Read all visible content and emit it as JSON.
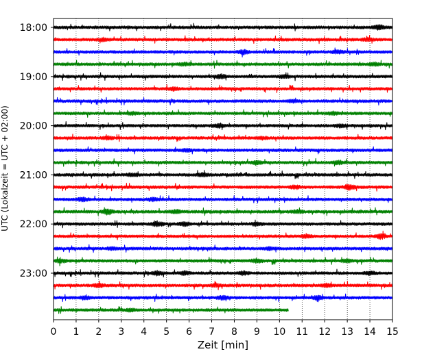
{
  "chart_data": {
    "type": "line",
    "title": "",
    "xlabel": "Zeit  [min]",
    "ylabel": "UTC (Lokalzeit = UTC + 02:00)",
    "xlim": [
      0,
      15
    ],
    "x_ticks": [
      0,
      1,
      2,
      3,
      4,
      5,
      6,
      7,
      8,
      9,
      10,
      11,
      12,
      13,
      14,
      15
    ],
    "x_tick_labels": [
      "0",
      "1",
      "2",
      "3",
      "4",
      "5",
      "6",
      "7",
      "8",
      "9",
      "10",
      "11",
      "12",
      "13",
      "14",
      "15"
    ],
    "y_tick_labels": [
      "18:00",
      "19:00",
      "20:00",
      "21:00",
      "22:00",
      "23:00"
    ],
    "grid": {
      "x": "dotted",
      "y": false
    },
    "trace_colors": [
      "#000000",
      "#ff0000",
      "#0000ff",
      "#008000"
    ],
    "traces": [
      {
        "start": "18:00",
        "end_min": 15,
        "events": [
          [
            14.4,
            2.2
          ]
        ]
      },
      {
        "start": "18:15",
        "end_min": 15,
        "events": [
          [
            13.9,
            1.7
          ],
          [
            2.2,
            1.4
          ]
        ]
      },
      {
        "start": "18:30",
        "end_min": 15,
        "events": [
          [
            8.4,
            2.2
          ],
          [
            12.6,
            1.6
          ]
        ]
      },
      {
        "start": "18:45",
        "end_min": 15,
        "events": [
          [
            5.8,
            1.4
          ],
          [
            14.2,
            1.5
          ]
        ]
      },
      {
        "start": "19:00",
        "end_min": 15,
        "events": [
          [
            7.4,
            1.9
          ],
          [
            10.2,
            1.3
          ]
        ]
      },
      {
        "start": "19:15",
        "end_min": 15,
        "events": [
          [
            5.3,
            1.3
          ]
        ]
      },
      {
        "start": "19:30",
        "end_min": 15,
        "events": [
          [
            10.6,
            1.3
          ]
        ]
      },
      {
        "start": "19:45",
        "end_min": 15,
        "events": [
          [
            12.4,
            1.4
          ],
          [
            3.5,
            1.2
          ]
        ]
      },
      {
        "start": "20:00",
        "end_min": 15,
        "events": [
          [
            7.3,
            1.7
          ],
          [
            12.7,
            1.5
          ]
        ]
      },
      {
        "start": "20:15",
        "end_min": 15,
        "events": [
          [
            2.4,
            1.6
          ],
          [
            9.2,
            1.3
          ]
        ]
      },
      {
        "start": "20:30",
        "end_min": 15,
        "events": [
          [
            5.9,
            1.2
          ]
        ]
      },
      {
        "start": "20:45",
        "end_min": 15,
        "events": [
          [
            9.0,
            2.0
          ],
          [
            12.6,
            1.8
          ]
        ]
      },
      {
        "start": "21:00",
        "end_min": 15,
        "events": [
          [
            6.6,
            1.6
          ],
          [
            3.5,
            1.3
          ]
        ]
      },
      {
        "start": "21:15",
        "end_min": 15,
        "events": [
          [
            13.1,
            2.6
          ],
          [
            10.7,
            1.6
          ]
        ]
      },
      {
        "start": "21:30",
        "end_min": 15,
        "events": [
          [
            1.3,
            1.7
          ],
          [
            4.4,
            1.4
          ]
        ]
      },
      {
        "start": "21:45",
        "end_min": 15,
        "events": [
          [
            2.4,
            2.8
          ],
          [
            5.4,
            1.8
          ],
          [
            10.8,
            1.4
          ]
        ]
      },
      {
        "start": "22:00",
        "end_min": 15,
        "events": [
          [
            4.6,
            2.2
          ],
          [
            5.8,
            1.9
          ],
          [
            9.0,
            1.5
          ]
        ]
      },
      {
        "start": "22:15",
        "end_min": 15,
        "events": [
          [
            14.5,
            2.4
          ],
          [
            11.2,
            1.5
          ]
        ]
      },
      {
        "start": "22:30",
        "end_min": 15,
        "events": [
          [
            2.6,
            1.3
          ],
          [
            9.6,
            1.2
          ]
        ]
      },
      {
        "start": "22:45",
        "end_min": 15,
        "events": [
          [
            0.3,
            1.6
          ],
          [
            9.0,
            1.9
          ],
          [
            13.0,
            1.4
          ]
        ]
      },
      {
        "start": "23:00",
        "end_min": 15,
        "events": [
          [
            4.6,
            1.8
          ],
          [
            5.8,
            1.7
          ],
          [
            8.4,
            1.6
          ],
          [
            14.0,
            1.5
          ]
        ]
      },
      {
        "start": "23:15",
        "end_min": 15,
        "events": [
          [
            2.0,
            1.8
          ],
          [
            12.1,
            1.7
          ],
          [
            7.2,
            1.3
          ]
        ]
      },
      {
        "start": "23:30",
        "end_min": 15,
        "events": [
          [
            7.5,
            1.8
          ],
          [
            11.7,
            1.9
          ],
          [
            1.4,
            1.3
          ]
        ]
      },
      {
        "start": "23:45",
        "end_min": 10.4,
        "events": [
          [
            3.4,
            1.3
          ]
        ]
      }
    ]
  }
}
